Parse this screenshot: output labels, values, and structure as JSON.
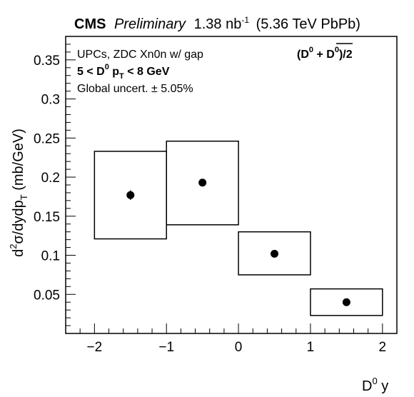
{
  "header": {
    "experiment": "CMS",
    "status": "Preliminary",
    "lumi": "1.38 nb",
    "lumi_exp": "-1",
    "energy": "(5.36 TeV PbPb)"
  },
  "legend": {
    "line1": "UPCs, ZDC Xn0n w/ gap",
    "line2_prefix": "5 < D",
    "line2_sup": "0",
    "line2_mid": " p",
    "line2_sub": "T",
    "line2_suffix": " < 8 GeV",
    "line3": "Global uncert. ± 5.05%",
    "species_open": "(D",
    "species_sup1": "0",
    "species_plus": " + ",
    "species_dbar": "D",
    "species_sup2": "0",
    "species_close": ")/2"
  },
  "axes": {
    "ylabel_d": "d",
    "ylabel_sup": "2",
    "ylabel_main": "σ/dydp",
    "ylabel_sub": "T",
    "ylabel_unit": " (mb/GeV)",
    "xlabel_main": "D",
    "xlabel_sup": "0",
    "xlabel_y": " y"
  },
  "chart_data": {
    "type": "scatter",
    "x_range": [
      -2.4,
      2.2
    ],
    "y_range": [
      0.0,
      0.38
    ],
    "x_ticks": [
      {
        "value": -2,
        "label": "−2"
      },
      {
        "value": -1,
        "label": "−1"
      },
      {
        "value": 0,
        "label": "0"
      },
      {
        "value": 1,
        "label": "1"
      },
      {
        "value": 2,
        "label": "2"
      }
    ],
    "y_ticks": [
      {
        "value": 0.05,
        "label": "0.05"
      },
      {
        "value": 0.1,
        "label": "0.1"
      },
      {
        "value": 0.15,
        "label": "0.15"
      },
      {
        "value": 0.2,
        "label": "0.2"
      },
      {
        "value": 0.25,
        "label": "0.25"
      },
      {
        "value": 0.3,
        "label": "0.3"
      },
      {
        "value": 0.35,
        "label": "0.35"
      }
    ],
    "points": [
      {
        "x": -1.5,
        "y": 0.177,
        "stat_err": 0.006,
        "bin": [
          -2,
          -1
        ],
        "sys": [
          0.121,
          0.233
        ]
      },
      {
        "x": -0.5,
        "y": 0.193,
        "stat_err": 0.003,
        "bin": [
          -1,
          0
        ],
        "sys": [
          0.139,
          0.246
        ]
      },
      {
        "x": 0.5,
        "y": 0.102,
        "stat_err": 0.002,
        "bin": [
          0,
          1
        ],
        "sys": [
          0.075,
          0.13
        ]
      },
      {
        "x": 1.5,
        "y": 0.04,
        "stat_err": 0.002,
        "bin": [
          1,
          2
        ],
        "sys": [
          0.023,
          0.057
        ]
      }
    ]
  }
}
